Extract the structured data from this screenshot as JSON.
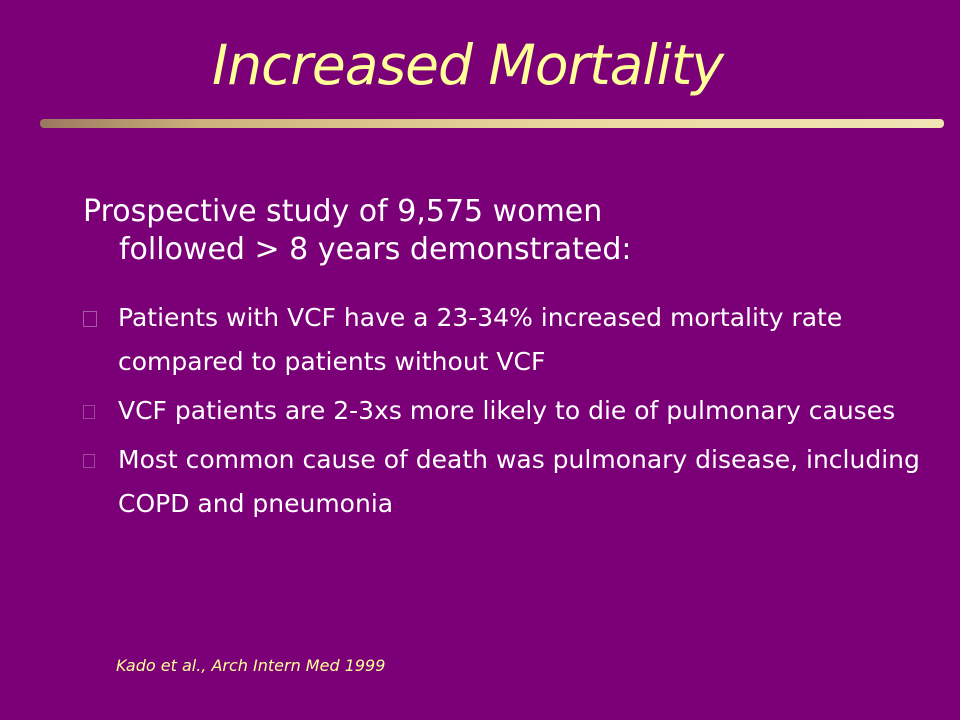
{
  "slide": {
    "title": "Increased Mortality",
    "intro": {
      "line1": "Prospective  study  of  9,575  women",
      "line2": "followed  >  8  years  demonstrated:"
    },
    "bullets": [
      {
        "text": "Patients with VCF have a 23-34% increased mortality rate compared to patients without VCF"
      },
      {
        "text": "VCF patients are 2-3xs more likely to die of pulmonary causes"
      },
      {
        "text": "Most common cause of death was pulmonary disease, including COPD and pneumonia"
      }
    ],
    "citation": "Kado et al., Arch Intern Med 1999"
  },
  "colors": {
    "background": "#7b0077",
    "title": "#ffff99",
    "body_text": "#ffffff",
    "rule": "#ead8a0"
  },
  "icons": {
    "bullet": "square-bullet-icon"
  }
}
